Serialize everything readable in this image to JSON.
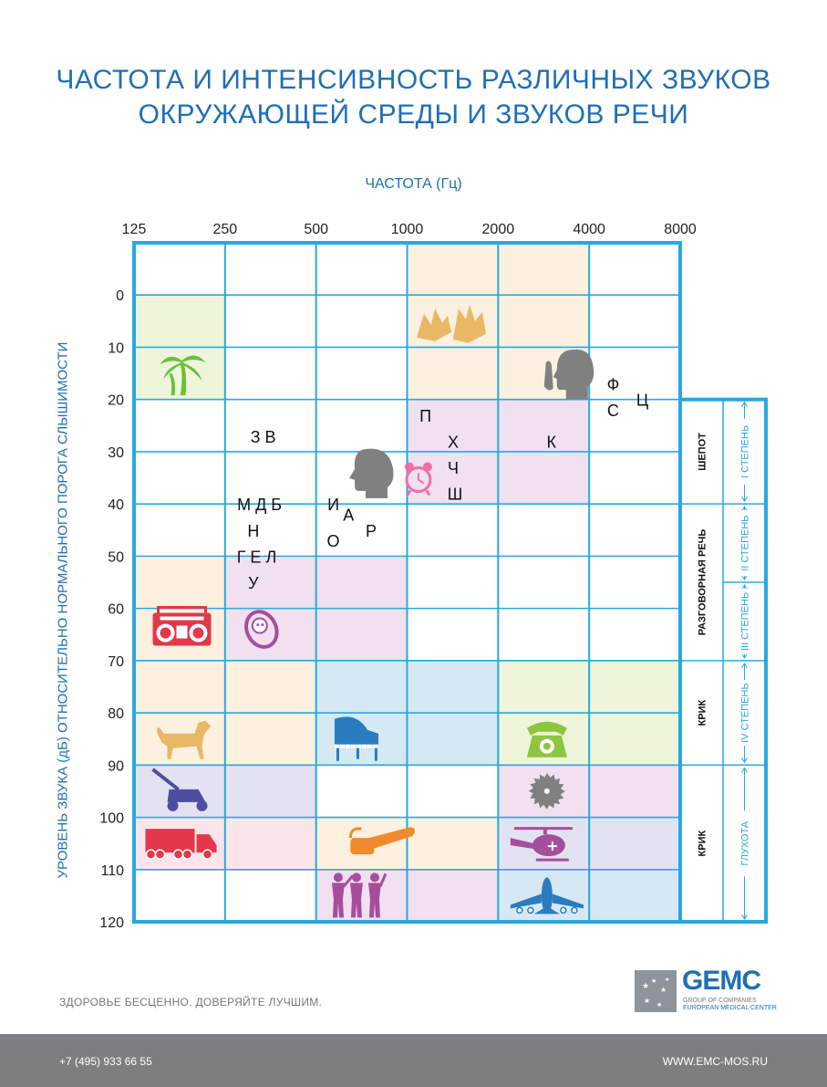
{
  "chart_data": {
    "type": "table",
    "title": [
      "ЧАСТОТА И ИНТЕНСИВНОСТЬ РАЗЛИЧНЫХ ЗВУКОВ",
      "ОКРУЖАЮЩЕЙ СРЕДЫ И ЗВУКОВ РЕЧИ"
    ],
    "xlabel": "ЧАСТОТА (Гц)",
    "ylabel": "УРОВЕНЬ ЗВУКА (дБ) ОТНОСИТЕЛЬНО НОРМАЛЬНОГО ПОРОГА СЛЫШИМОСТИ",
    "x_ticks": [
      "125",
      "250",
      "500",
      "1000",
      "2000",
      "4000",
      "8000"
    ],
    "y_ticks": [
      "0",
      "10",
      "20",
      "30",
      "40",
      "50",
      "60",
      "70",
      "80",
      "90",
      "100",
      "110",
      "120"
    ],
    "ylim": [
      -10,
      120
    ],
    "x_scale": "log2",
    "letters": [
      {
        "text": "З В",
        "freq": 334,
        "db": 27
      },
      {
        "text": "М Д Б",
        "freq": 325,
        "db": 40
      },
      {
        "text": "Н",
        "freq": 310,
        "db": 45
      },
      {
        "text": "Г Е Л",
        "freq": 318,
        "db": 50
      },
      {
        "text": "У",
        "freq": 310,
        "db": 55
      },
      {
        "text": "И",
        "freq": 570,
        "db": 40
      },
      {
        "text": "А",
        "freq": 640,
        "db": 42
      },
      {
        "text": "Р",
        "freq": 760,
        "db": 45
      },
      {
        "text": "О",
        "freq": 570,
        "db": 47
      },
      {
        "text": "П",
        "freq": 1150,
        "db": 23
      },
      {
        "text": "Х",
        "freq": 1420,
        "db": 28
      },
      {
        "text": "Ч",
        "freq": 1420,
        "db": 33
      },
      {
        "text": "Ш",
        "freq": 1440,
        "db": 38
      },
      {
        "text": "К",
        "freq": 3000,
        "db": 28
      },
      {
        "text": "Ф",
        "freq": 4800,
        "db": 17
      },
      {
        "text": "С",
        "freq": 4800,
        "db": 22
      },
      {
        "text": "Ц",
        "freq": 6000,
        "db": 20
      }
    ],
    "icons": [
      {
        "name": "leaves-icon",
        "freq": 1400,
        "db": 5
      },
      {
        "name": "palm-tree-icon",
        "freq": 180,
        "db": 15
      },
      {
        "name": "whisper-head-icon",
        "freq": 3400,
        "db": 15
      },
      {
        "name": "talking-head-icon",
        "freq": 750,
        "db": 34
      },
      {
        "name": "alarm-clock-icon",
        "freq": 1090,
        "db": 35
      },
      {
        "name": "boombox-icon",
        "freq": 180,
        "db": 64
      },
      {
        "name": "baby-icon",
        "freq": 330,
        "db": 64
      },
      {
        "name": "dog-icon",
        "freq": 180,
        "db": 85
      },
      {
        "name": "piano-icon",
        "freq": 680,
        "db": 85
      },
      {
        "name": "telephone-icon",
        "freq": 2900,
        "db": 85
      },
      {
        "name": "lawn-mower-icon",
        "freq": 180,
        "db": 95
      },
      {
        "name": "saw-blade-icon",
        "freq": 2900,
        "db": 95
      },
      {
        "name": "truck-icon",
        "freq": 180,
        "db": 105
      },
      {
        "name": "chainsaw-icon",
        "freq": 800,
        "db": 105
      },
      {
        "name": "helicopter-icon",
        "freq": 2900,
        "db": 105
      },
      {
        "name": "musicians-icon",
        "freq": 680,
        "db": 115
      },
      {
        "name": "airplane-icon",
        "freq": 2900,
        "db": 115
      }
    ],
    "shading": [
      {
        "col": 3,
        "db_from": -10,
        "db_to": 20,
        "color": "#fcf0de"
      },
      {
        "col": 4,
        "db_from": -10,
        "db_to": 20,
        "color": "#fcf0de"
      },
      {
        "col": 0,
        "db_from": 0,
        "db_to": 20,
        "color": "#eef5da"
      },
      {
        "col": 3,
        "db_from": 20,
        "db_to": 40,
        "color": "#f0e0f0"
      },
      {
        "col": 4,
        "db_from": 20,
        "db_to": 40,
        "color": "#f0e0f0"
      },
      {
        "col": 0,
        "db_from": 50,
        "db_to": 70,
        "color": "#fcf0de"
      },
      {
        "col": 1,
        "db_from": 50,
        "db_to": 70,
        "color": "#f0e0f0"
      },
      {
        "col": 2,
        "db_from": 50,
        "db_to": 70,
        "color": "#f0e0f0"
      },
      {
        "col": 0,
        "db_from": 70,
        "db_to": 90,
        "color": "#fcf0de"
      },
      {
        "col": 1,
        "db_from": 70,
        "db_to": 90,
        "color": "#fcf0de"
      },
      {
        "col": 2,
        "db_from": 70,
        "db_to": 90,
        "color": "#d6e8f4"
      },
      {
        "col": 3,
        "db_from": 70,
        "db_to": 90,
        "color": "#d6e8f4"
      },
      {
        "col": 4,
        "db_from": 70,
        "db_to": 90,
        "color": "#eef5da"
      },
      {
        "col": 5,
        "db_from": 70,
        "db_to": 90,
        "color": "#eef5da"
      },
      {
        "col": 0,
        "db_from": 90,
        "db_to": 100,
        "color": "#e2e2f2"
      },
      {
        "col": 1,
        "db_from": 90,
        "db_to": 100,
        "color": "#e2e2f2"
      },
      {
        "col": 4,
        "db_from": 90,
        "db_to": 100,
        "color": "#f0e0f0"
      },
      {
        "col": 5,
        "db_from": 90,
        "db_to": 100,
        "color": "#f0e0f0"
      },
      {
        "col": 0,
        "db_from": 100,
        "db_to": 110,
        "color": "#fbe5ea"
      },
      {
        "col": 1,
        "db_from": 100,
        "db_to": 110,
        "color": "#fbe5ea"
      },
      {
        "col": 2,
        "db_from": 100,
        "db_to": 110,
        "color": "#fcf0de"
      },
      {
        "col": 3,
        "db_from": 100,
        "db_to": 110,
        "color": "#fcf0de"
      },
      {
        "col": 4,
        "db_from": 100,
        "db_to": 110,
        "color": "#e2e2f2"
      },
      {
        "col": 5,
        "db_from": 100,
        "db_to": 110,
        "color": "#e2e2f2"
      },
      {
        "col": 2,
        "db_from": 110,
        "db_to": 120,
        "color": "#f0e0f0"
      },
      {
        "col": 3,
        "db_from": 110,
        "db_to": 120,
        "color": "#f0e0f0"
      },
      {
        "col": 4,
        "db_from": 110,
        "db_to": 120,
        "color": "#d6e8f4"
      },
      {
        "col": 5,
        "db_from": 110,
        "db_to": 120,
        "color": "#d6e8f4"
      }
    ],
    "legend": {
      "categories": [
        {
          "label": "ШЕПОТ",
          "db_from": 20,
          "db_to": 40
        },
        {
          "label": "РАЗГОВОРНАЯ РЕЧЬ",
          "db_from": 40,
          "db_to": 70
        },
        {
          "label": "КРИК",
          "db_from": 70,
          "db_to": 90
        },
        {
          "label": "КРИК",
          "db_from": 90,
          "db_to": 120
        }
      ],
      "degrees": [
        {
          "label": "I СТЕПЕНЬ",
          "db_from": 20,
          "db_to": 40
        },
        {
          "label": "II СТЕПЕНЬ",
          "db_from": 40,
          "db_to": 55
        },
        {
          "label": "III СТЕПЕНЬ",
          "db_from": 55,
          "db_to": 70
        },
        {
          "label": "IV СТЕПЕНЬ",
          "db_from": 70,
          "db_to": 90
        },
        {
          "label": "ГЛУХОТА",
          "db_from": 90,
          "db_to": 120
        }
      ]
    },
    "colors": {
      "grid": "#29a8e0",
      "title": "#1f6fb5",
      "icon_green": "#6cbf3a",
      "icon_grey": "#808080",
      "icon_pink": "#ef6fa3",
      "icon_red": "#e2384a",
      "icon_purple": "#a64d9c",
      "icon_orange": "#f08a2a",
      "icon_tan": "#e8b865",
      "icon_blue": "#2a7bc0",
      "icon_indigo": "#4e4ea0",
      "icon_lime": "#8cc63f"
    }
  },
  "footer": {
    "slogan": "ЗДОРОВЬЕ БЕСЦЕННО. ДОВЕРЯЙТЕ ЛУЧШИМ.",
    "logo": "GEMC",
    "logo_sub1": "GROUP OF COMPANIES",
    "logo_sub2": "EUROPEAN MEDICAL CENTER",
    "phone": "+7 (495) 933 66 55",
    "site": "WWW.EMC-MOS.RU"
  }
}
